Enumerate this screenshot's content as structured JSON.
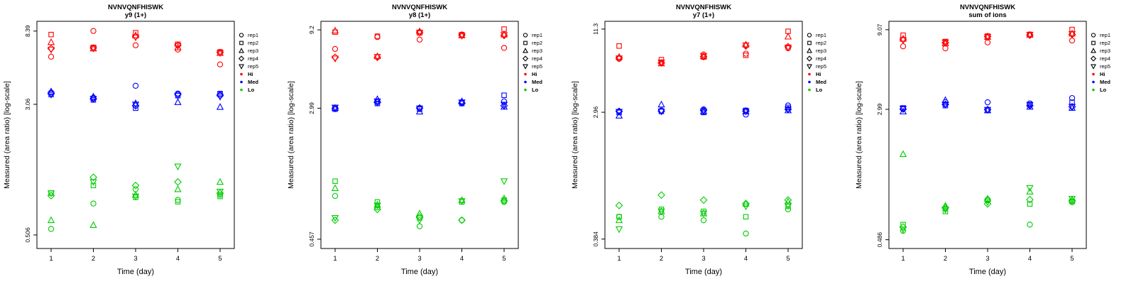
{
  "figure": {
    "xlabel": "Time (day)",
    "ylabel": "Measured (area ratio) [log-scale]",
    "marker_order": [
      "circle",
      "square",
      "triangle-up",
      "diamond",
      "triangle-down"
    ],
    "legend": {
      "reps": [
        {
          "label": "rep1",
          "marker": "circle"
        },
        {
          "label": "rep2",
          "marker": "square"
        },
        {
          "label": "rep3",
          "marker": "triangle-up"
        },
        {
          "label": "rep4",
          "marker": "diamond"
        },
        {
          "label": "rep5",
          "marker": "triangle-down"
        }
      ],
      "levels": [
        {
          "label": "Hi",
          "color": "#FF0000"
        },
        {
          "label": "Med",
          "color": "#0000FF"
        },
        {
          "label": "Lo",
          "color": "#00CC00"
        }
      ]
    }
  },
  "chart_data": [
    {
      "id": "y9",
      "type": "scatter",
      "title": "NVNVQNFHISWK",
      "subtitle": "y9 (1+)",
      "xlabel": "Time (day)",
      "ylabel": "Measured (area ratio) [log-scale]",
      "x": [
        1,
        2,
        3,
        4,
        5
      ],
      "yscale": "log",
      "yticks": [
        0.506,
        3.06,
        8.39
      ],
      "ylim": [
        0.42,
        9.6
      ],
      "levels": [
        {
          "name": "Hi",
          "color": "#FF0000",
          "reps": [
            [
              5.9,
              8.4,
              6.9,
              6.5,
              5.3
            ],
            [
              8.0,
              6.7,
              8.2,
              7.0,
              6.3
            ],
            [
              7.2,
              6.6,
              7.9,
              6.7,
              6.2
            ],
            [
              6.6,
              6.65,
              7.8,
              6.9,
              6.25
            ],
            [
              6.5,
              6.6,
              7.7,
              6.85,
              6.2
            ]
          ]
        },
        {
          "name": "Med",
          "color": "#0000FF",
          "reps": [
            [
              3.6,
              3.35,
              3.95,
              3.55,
              3.5
            ],
            [
              3.5,
              3.25,
              2.9,
              3.45,
              3.55
            ],
            [
              3.65,
              3.4,
              3.1,
              3.15,
              2.95
            ],
            [
              3.55,
              3.3,
              3.0,
              3.5,
              3.45
            ],
            [
              3.5,
              3.3,
              3.05,
              3.45,
              3.4
            ]
          ]
        },
        {
          "name": "Lo",
          "color": "#00CC00",
          "reps": [
            [
              0.55,
              0.78,
              0.95,
              0.82,
              0.88
            ],
            [
              0.9,
              1.0,
              0.85,
              0.8,
              0.86
            ],
            [
              0.62,
              0.58,
              0.88,
              0.95,
              1.05
            ],
            [
              0.87,
              1.12,
              1.0,
              1.05,
              0.9
            ],
            [
              0.9,
              1.05,
              0.86,
              1.3,
              0.92
            ]
          ]
        }
      ]
    },
    {
      "id": "y8",
      "type": "scatter",
      "title": "NVNVQNFHISWK",
      "subtitle": "y8 (1+)",
      "xlabel": "Time (day)",
      "ylabel": "Measured (area ratio) [log-scale]",
      "x": [
        1,
        2,
        3,
        4,
        5
      ],
      "yscale": "log",
      "yticks": [
        0.457,
        2.99,
        9.2
      ],
      "ylim": [
        0.4,
        10.4
      ],
      "levels": [
        {
          "name": "Hi",
          "color": "#FF0000",
          "reps": [
            [
              7.0,
              8.3,
              8.0,
              8.5,
              7.1
            ],
            [
              8.9,
              8.4,
              8.8,
              8.6,
              9.3
            ],
            [
              9.1,
              6.3,
              9.0,
              8.5,
              8.6
            ],
            [
              6.2,
              6.2,
              8.9,
              8.55,
              8.5
            ],
            [
              6.1,
              6.25,
              8.85,
              8.45,
              8.55
            ]
          ]
        },
        {
          "name": "Med",
          "color": "#0000FF",
          "reps": [
            [
              3.0,
              3.3,
              3.0,
              3.25,
              3.3
            ],
            [
              2.95,
              3.2,
              2.95,
              3.2,
              3.6
            ],
            [
              3.0,
              3.4,
              2.85,
              3.3,
              3.05
            ],
            [
              2.98,
              3.25,
              3.0,
              3.22,
              3.1
            ],
            [
              3.02,
              3.3,
              2.98,
              3.25,
              3.15
            ]
          ]
        },
        {
          "name": "Lo",
          "color": "#00CC00",
          "reps": [
            [
              0.85,
              0.72,
              0.55,
              0.6,
              0.78
            ],
            [
              1.05,
              0.78,
              0.62,
              0.78,
              0.8
            ],
            [
              0.95,
              0.75,
              0.66,
              0.8,
              0.82
            ],
            [
              0.6,
              0.7,
              0.63,
              0.6,
              0.79
            ],
            [
              0.62,
              0.74,
              0.6,
              0.79,
              1.05
            ]
          ]
        }
      ]
    },
    {
      "id": "y7",
      "type": "scatter",
      "title": "NVNVQNFHISWK",
      "subtitle": "y7 (1+)",
      "xlabel": "Time (day)",
      "ylabel": "Measured (area ratio) [log-scale]",
      "x": [
        1,
        2,
        3,
        4,
        5
      ],
      "yscale": "log",
      "yticks": [
        0.384,
        2.96,
        11.3
      ],
      "ylim": [
        0.33,
        12.8
      ],
      "levels": [
        {
          "name": "Hi",
          "color": "#FF0000",
          "reps": [
            [
              7.0,
              6.6,
              7.5,
              7.6,
              8.3
            ],
            [
              8.6,
              6.9,
              7.2,
              7.4,
              10.9
            ],
            [
              7.2,
              6.5,
              7.3,
              8.8,
              10.0
            ],
            [
              7.1,
              6.55,
              7.25,
              8.6,
              8.5
            ],
            [
              7.05,
              6.6,
              7.3,
              8.7,
              8.4
            ]
          ]
        },
        {
          "name": "Med",
          "color": "#0000FF",
          "reps": [
            [
              3.0,
              3.05,
              3.1,
              2.85,
              3.3
            ],
            [
              2.95,
              3.0,
              2.95,
              3.05,
              3.2
            ],
            [
              2.8,
              3.35,
              3.0,
              3.0,
              3.05
            ],
            [
              3.0,
              3.02,
              3.05,
              3.02,
              3.1
            ],
            [
              2.98,
              3.0,
              3.0,
              3.0,
              3.1
            ]
          ]
        },
        {
          "name": "Lo",
          "color": "#00CC00",
          "reps": [
            [
              0.55,
              0.55,
              0.52,
              0.42,
              0.62
            ],
            [
              0.55,
              0.62,
              0.6,
              0.55,
              0.65
            ],
            [
              0.52,
              0.6,
              0.58,
              0.68,
              0.7
            ],
            [
              0.66,
              0.78,
              0.72,
              0.68,
              0.72
            ],
            [
              0.45,
              0.6,
              0.58,
              0.65,
              0.66
            ]
          ]
        }
      ]
    },
    {
      "id": "sum",
      "type": "scatter",
      "title": "NVNVQNFHISWK",
      "subtitle": "sum of ions",
      "xlabel": "Time (day)",
      "ylabel": "Measured (area ratio) [log-scale]",
      "x": [
        1,
        2,
        3,
        4,
        5
      ],
      "yscale": "log",
      "yticks": [
        0.486,
        2.99,
        9.07
      ],
      "ylim": [
        0.43,
        10.2
      ],
      "levels": [
        {
          "name": "Hi",
          "color": "#FF0000",
          "reps": [
            [
              7.2,
              7.0,
              7.6,
              8.4,
              7.8
            ],
            [
              8.4,
              7.7,
              8.3,
              8.5,
              9.1
            ],
            [
              8.0,
              7.5,
              8.2,
              8.45,
              8.6
            ],
            [
              7.9,
              7.55,
              8.25,
              8.4,
              8.5
            ],
            [
              7.85,
              7.6,
              8.2,
              8.45,
              8.55
            ]
          ]
        },
        {
          "name": "Med",
          "color": "#0000FF",
          "reps": [
            [
              3.0,
              3.3,
              3.3,
              3.25,
              3.5
            ],
            [
              3.05,
              3.15,
              2.95,
              3.2,
              3.3
            ],
            [
              2.9,
              3.4,
              2.95,
              3.1,
              3.05
            ],
            [
              3.0,
              3.2,
              2.98,
              3.15,
              3.1
            ],
            [
              3.02,
              3.2,
              2.97,
              3.18,
              3.1
            ]
          ]
        },
        {
          "name": "Lo",
          "color": "#00CC00",
          "reps": [
            [
              0.55,
              0.75,
              0.85,
              0.6,
              0.82
            ],
            [
              0.6,
              0.72,
              0.84,
              0.8,
              0.83
            ],
            [
              1.6,
              0.78,
              0.86,
              0.95,
              0.85
            ],
            [
              0.58,
              0.76,
              0.8,
              0.85,
              0.84
            ],
            [
              0.56,
              0.74,
              0.82,
              1.0,
              0.86
            ]
          ]
        }
      ]
    }
  ]
}
